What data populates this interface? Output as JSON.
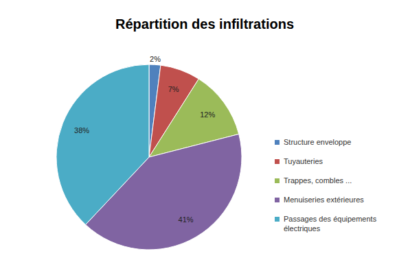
{
  "chart_data": {
    "type": "pie",
    "title": "Répartition des infiltrations",
    "categories": [
      "Structure enveloppe",
      "Tuyauteries",
      "Trappes, combles ...",
      "Menuiseries extérieures",
      "Passages des équipements électriques"
    ],
    "values": [
      2,
      7,
      12,
      41,
      38
    ],
    "value_labels": [
      "2%",
      "7%",
      "12%",
      "41%",
      "38%"
    ],
    "colors": [
      "#4f81bd",
      "#c0504d",
      "#9bbb59",
      "#8064a2",
      "#4bacc6"
    ],
    "legend": "right",
    "data_labels": true
  }
}
